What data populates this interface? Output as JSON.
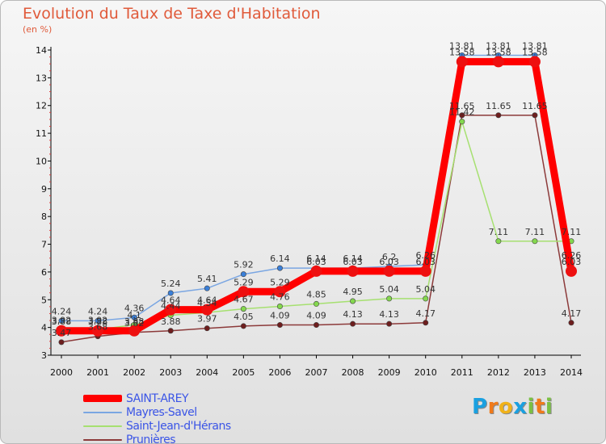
{
  "chart_data": {
    "type": "line",
    "title": "Evolution du Taux de Taxe d'Habitation",
    "subtitle": "(en %)",
    "xlabel": "",
    "ylabel": "",
    "x": [
      2000,
      2001,
      2002,
      2003,
      2004,
      2005,
      2006,
      2007,
      2008,
      2009,
      2010,
      2011,
      2012,
      2013,
      2014
    ],
    "ylim": [
      3,
      14
    ],
    "yticks": [
      3,
      4,
      5,
      6,
      7,
      8,
      9,
      10,
      11,
      12,
      13,
      14
    ],
    "grid": false,
    "legend_position": "bottom-left",
    "series": [
      {
        "name": "SAINT-AREY",
        "color": "#ff0000",
        "marker_color": "#ee1010",
        "values": [
          3.88,
          3.88,
          3.88,
          4.64,
          4.64,
          5.29,
          5.29,
          6.03,
          6.03,
          6.03,
          6.03,
          13.58,
          13.58,
          13.58,
          6.03
        ],
        "labels": [
          "3.88",
          "3.88",
          "3.88",
          "4.64",
          "4.64",
          "5.29",
          "5.29",
          "6.03",
          "6.03",
          "6.03",
          "6.03",
          "13.58",
          "13.58",
          "13.58",
          "6.03"
        ]
      },
      {
        "name": "Mayres-Savel",
        "color": "#7aa6e2",
        "marker_color": "#3a7fd8",
        "values": [
          4.24,
          4.24,
          4.36,
          5.24,
          5.41,
          5.92,
          6.14,
          6.14,
          6.14,
          6.2,
          6.26,
          13.81,
          13.81,
          13.81,
          6.26
        ],
        "labels": [
          "4.24",
          "4.24",
          "4.36",
          "5.24",
          "5.41",
          "5.92",
          "6.14",
          "6.14",
          "6.14",
          "6.2",
          "6.26",
          "13.81",
          "13.81",
          "13.81",
          "6.26"
        ]
      },
      {
        "name": "Saint-Jean-d'Hérans",
        "color": "#a6e070",
        "marker_color": "#84d84e",
        "values": [
          3.92,
          3.92,
          4.1,
          4.44,
          4.54,
          4.67,
          4.76,
          4.85,
          4.95,
          5.04,
          5.04,
          11.42,
          7.11,
          7.11,
          7.11
        ],
        "labels": [
          "3.92",
          "3.92",
          "4.1",
          "4.44",
          "4.54",
          "4.67",
          "4.76",
          "4.85",
          "4.95",
          "5.04",
          "5.04",
          "11.42",
          "7.11",
          "7.11",
          "7.11"
        ]
      },
      {
        "name": "Prunières",
        "color": "#8c3a3a",
        "marker_color": "#6e1e1e",
        "values": [
          3.47,
          3.68,
          3.82,
          3.88,
          3.97,
          4.05,
          4.09,
          4.09,
          4.13,
          4.13,
          4.17,
          11.65,
          11.65,
          11.65,
          4.17
        ],
        "labels": [
          "3.47",
          "3.68",
          "3.82",
          "3.88",
          "3.97",
          "4.05",
          "4.09",
          "4.09",
          "4.13",
          "4.13",
          "4.17",
          "11.65",
          "11.65",
          "11.65",
          "4.17"
        ]
      }
    ]
  },
  "logo": {
    "letters": [
      "P",
      "r",
      "o",
      "x",
      "i",
      "t",
      "i"
    ],
    "colors": [
      "#1aa0e0",
      "#f07a1a",
      "#f0b21a",
      "#1aa0e0",
      "#7bc043",
      "#f07a1a",
      "#7bc043"
    ]
  }
}
